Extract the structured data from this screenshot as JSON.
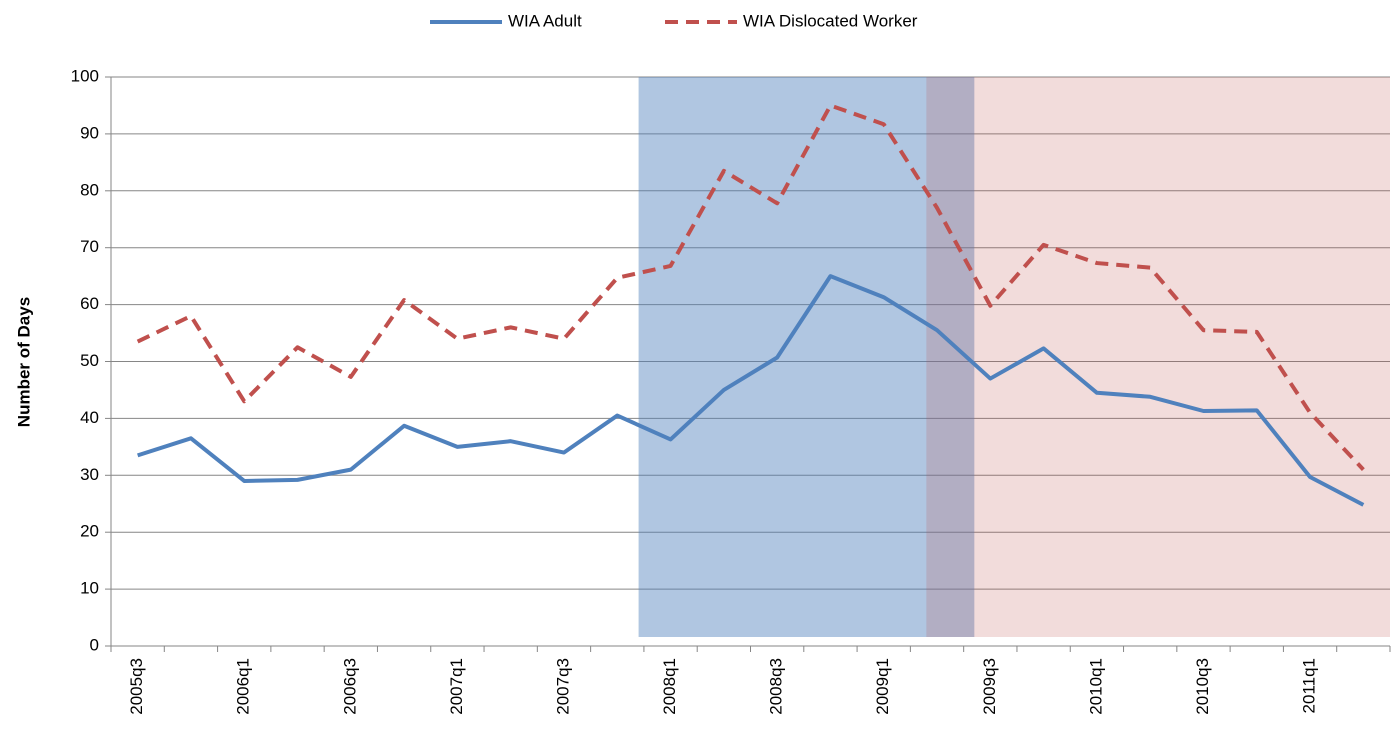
{
  "chart_data": {
    "type": "line",
    "y_label": "Number of Days",
    "categories": [
      "2005q3",
      null,
      "2006q1",
      null,
      "2006q3",
      null,
      "2007q1",
      null,
      "2007q3",
      null,
      "2008q1",
      null,
      "2008q3",
      null,
      "2009q1",
      null,
      "2009q3",
      null,
      "2010q1",
      null,
      "2010q3",
      null,
      "2011q1",
      null
    ],
    "series": [
      {
        "name": "WIA Adult",
        "color": "#4f81bd",
        "dashed": false,
        "values": [
          33.5,
          36.5,
          29,
          29.2,
          31,
          38.7,
          35,
          36,
          34,
          40.5,
          36.3,
          45,
          50.7,
          65,
          61.3,
          55.5,
          47,
          52.3,
          44.5,
          43.8,
          41.3,
          41.4,
          29.7,
          24.8
        ]
      },
      {
        "name": "WIA Dislocated Worker",
        "color": "#c0504d",
        "dashed": true,
        "values": [
          53.5,
          58,
          43,
          52.5,
          47.3,
          60.8,
          54,
          56,
          54,
          64.7,
          66.8,
          83.5,
          77.8,
          95,
          91.7,
          77,
          59.8,
          70.5,
          67.3,
          66.5,
          55.5,
          55.2,
          41,
          31
        ]
      }
    ],
    "shaded_spans": [
      {
        "start": 9.9,
        "end": 16.2,
        "color": "#4f81bd"
      },
      {
        "start": 15.3,
        "end": 24,
        "color": "#c0504d"
      }
    ],
    "ylim": [
      0,
      100
    ],
    "yticks": [
      0,
      10,
      20,
      30,
      40,
      50,
      60,
      70,
      80,
      90,
      100
    ],
    "grid": true,
    "legend": "top"
  }
}
